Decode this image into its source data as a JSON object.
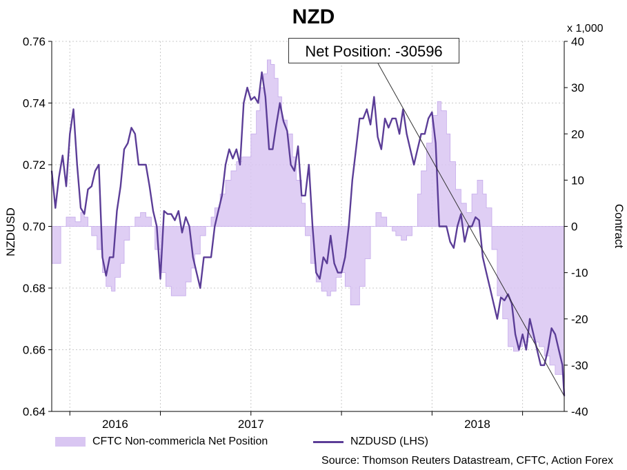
{
  "chart_data": {
    "type": "line",
    "title": "NZD",
    "ylabel_left": "NZDUSD",
    "ylabel_right": "Contract",
    "right_multiplier": "x 1,000",
    "ylim_left": [
      0.64,
      0.76
    ],
    "ylim_right": [
      -40,
      40
    ],
    "yticks_left": [
      "0.76",
      "0.74",
      "0.72",
      "0.70",
      "0.68",
      "0.66",
      "0.64"
    ],
    "yticks_right": [
      "40",
      "30",
      "20",
      "10",
      "0",
      "-10",
      "-20",
      "-30",
      "-40"
    ],
    "x_range": [
      2015.9,
      2018.73
    ],
    "xticks": [
      {
        "label": "2016",
        "pos": 2016.25
      },
      {
        "label": "2017",
        "pos": 2017.0
      },
      {
        "label": "2018",
        "pos": 2018.25
      }
    ],
    "year_boundaries": [
      2016.0,
      2016.5,
      2017.0,
      2017.5,
      2018.0,
      2018.5
    ],
    "grid": true,
    "annotation": "Net Position: -30596",
    "series": [
      {
        "name": "CFTC Non-commericla Net Position",
        "axis": "right",
        "style": "area",
        "color": "#d9c6f2",
        "x": [
          2015.9,
          2015.93,
          2015.95,
          2015.98,
          2016.0,
          2016.03,
          2016.06,
          2016.08,
          2016.1,
          2016.12,
          2016.15,
          2016.18,
          2016.2,
          2016.23,
          2016.25,
          2016.28,
          2016.3,
          2016.33,
          2016.36,
          2016.39,
          2016.42,
          2016.45,
          2016.47,
          2016.5,
          2016.53,
          2016.56,
          2016.58,
          2016.61,
          2016.64,
          2016.67,
          2016.69,
          2016.72,
          2016.75,
          2016.78,
          2016.8,
          2016.83,
          2016.86,
          2016.89,
          2016.92,
          2016.95,
          2016.97,
          2017.0,
          2017.03,
          2017.05,
          2017.07,
          2017.09,
          2017.11,
          2017.13,
          2017.15,
          2017.17,
          2017.2,
          2017.23,
          2017.25,
          2017.28,
          2017.3,
          2017.33,
          2017.36,
          2017.39,
          2017.42,
          2017.44,
          2017.47,
          2017.5,
          2017.52,
          2017.55,
          2017.58,
          2017.6,
          2017.63,
          2017.66,
          2017.69,
          2017.72,
          2017.75,
          2017.78,
          2017.8,
          2017.83,
          2017.86,
          2017.89,
          2017.92,
          2017.94,
          2017.97,
          2018.0,
          2018.03,
          2018.05,
          2018.08,
          2018.1,
          2018.13,
          2018.16,
          2018.19,
          2018.22,
          2018.25,
          2018.28,
          2018.3,
          2018.33,
          2018.36,
          2018.39,
          2018.42,
          2018.45,
          2018.48,
          2018.5,
          2018.53,
          2018.56,
          2018.59,
          2018.62,
          2018.65,
          2018.68,
          2018.71,
          2018.73
        ],
        "values": [
          -8,
          -8,
          0,
          2,
          2,
          1,
          3,
          2,
          0,
          -2,
          -5,
          -10,
          -13,
          -14,
          -11,
          -8,
          -3,
          0,
          2,
          3,
          2,
          0,
          -5,
          -10,
          -13,
          -15,
          -15,
          -15,
          -12,
          -9,
          -6,
          -2,
          0,
          2,
          4,
          7,
          10,
          12,
          14,
          15,
          15,
          20,
          25,
          30,
          33,
          36,
          35,
          32,
          28,
          23,
          20,
          15,
          10,
          5,
          -2,
          -8,
          -12,
          -14,
          -15,
          -14,
          -11,
          -10,
          -13,
          -17,
          -17,
          -13,
          -7,
          0,
          3,
          2,
          0,
          -1,
          -2,
          -3,
          -2,
          0,
          7,
          12,
          18,
          24,
          27,
          25,
          20,
          14,
          8,
          5,
          3,
          7,
          10,
          7,
          4,
          -5,
          -15,
          -20,
          -26,
          -27,
          -26,
          -25,
          -24,
          -25,
          -26,
          -28,
          -30,
          -32,
          -32,
          -31
        ]
      },
      {
        "name": "NZDUSD (LHS)",
        "axis": "left",
        "style": "line",
        "color": "#5b3d97",
        "x": [
          2015.9,
          2015.92,
          2015.94,
          2015.96,
          2015.98,
          2016.0,
          2016.02,
          2016.04,
          2016.06,
          2016.08,
          2016.1,
          2016.12,
          2016.14,
          2016.16,
          2016.18,
          2016.2,
          2016.22,
          2016.24,
          2016.26,
          2016.28,
          2016.3,
          2016.32,
          2016.34,
          2016.36,
          2016.38,
          2016.4,
          2016.42,
          2016.44,
          2016.46,
          2016.48,
          2016.5,
          2016.52,
          2016.54,
          2016.56,
          2016.58,
          2016.6,
          2016.62,
          2016.64,
          2016.66,
          2016.68,
          2016.7,
          2016.72,
          2016.74,
          2016.76,
          2016.78,
          2016.8,
          2016.82,
          2016.84,
          2016.86,
          2016.88,
          2016.9,
          2016.92,
          2016.94,
          2016.96,
          2016.98,
          2017.0,
          2017.02,
          2017.04,
          2017.06,
          2017.08,
          2017.1,
          2017.12,
          2017.14,
          2017.16,
          2017.18,
          2017.2,
          2017.22,
          2017.24,
          2017.26,
          2017.28,
          2017.3,
          2017.32,
          2017.34,
          2017.36,
          2017.38,
          2017.4,
          2017.42,
          2017.44,
          2017.46,
          2017.48,
          2017.5,
          2017.52,
          2017.54,
          2017.56,
          2017.58,
          2017.6,
          2017.62,
          2017.64,
          2017.66,
          2017.68,
          2017.7,
          2017.72,
          2017.74,
          2017.76,
          2017.78,
          2017.8,
          2017.82,
          2017.84,
          2017.86,
          2017.88,
          2017.9,
          2017.92,
          2017.94,
          2017.96,
          2017.98,
          2018.0,
          2018.02,
          2018.04,
          2018.06,
          2018.08,
          2018.1,
          2018.12,
          2018.14,
          2018.16,
          2018.18,
          2018.2,
          2018.22,
          2018.24,
          2018.26,
          2018.28,
          2018.3,
          2018.32,
          2018.34,
          2018.36,
          2018.38,
          2018.4,
          2018.42,
          2018.44,
          2018.46,
          2018.48,
          2018.5,
          2018.52,
          2018.54,
          2018.56,
          2018.58,
          2018.6,
          2018.62,
          2018.64,
          2018.66,
          2018.68,
          2018.7,
          2018.72,
          2018.73
        ],
        "values": [
          0.718,
          0.706,
          0.716,
          0.723,
          0.713,
          0.73,
          0.738,
          0.72,
          0.706,
          0.704,
          0.712,
          0.713,
          0.718,
          0.72,
          0.69,
          0.684,
          0.69,
          0.69,
          0.705,
          0.713,
          0.725,
          0.727,
          0.732,
          0.73,
          0.72,
          0.72,
          0.72,
          0.713,
          0.705,
          0.7,
          0.683,
          0.705,
          0.704,
          0.704,
          0.702,
          0.705,
          0.698,
          0.703,
          0.7,
          0.69,
          0.685,
          0.68,
          0.69,
          0.69,
          0.69,
          0.7,
          0.705,
          0.71,
          0.72,
          0.725,
          0.722,
          0.725,
          0.72,
          0.74,
          0.745,
          0.741,
          0.742,
          0.74,
          0.75,
          0.742,
          0.725,
          0.725,
          0.733,
          0.74,
          0.734,
          0.731,
          0.72,
          0.718,
          0.726,
          0.71,
          0.71,
          0.72,
          0.7,
          0.685,
          0.683,
          0.69,
          0.688,
          0.697,
          0.688,
          0.685,
          0.685,
          0.69,
          0.7,
          0.715,
          0.725,
          0.735,
          0.735,
          0.738,
          0.733,
          0.742,
          0.729,
          0.725,
          0.735,
          0.732,
          0.735,
          0.735,
          0.73,
          0.738,
          0.73,
          0.725,
          0.72,
          0.725,
          0.73,
          0.73,
          0.735,
          0.737,
          0.727,
          0.7,
          0.7,
          0.7,
          0.695,
          0.693,
          0.7,
          0.704,
          0.695,
          0.7,
          0.7,
          0.703,
          0.702,
          0.69,
          0.685,
          0.68,
          0.675,
          0.67,
          0.677,
          0.676,
          0.678,
          0.675,
          0.665,
          0.66,
          0.665,
          0.66,
          0.67,
          0.665,
          0.66,
          0.655,
          0.655,
          0.66,
          0.667,
          0.665,
          0.66,
          0.655,
          0.645
        ]
      }
    ]
  },
  "legend": {
    "area_label": "CFTC Non-commericla Net Position",
    "line_label": "NZDUSD (LHS)"
  },
  "source": "Source: Thomson Reuters Datastream, CFTC, Action Forex"
}
